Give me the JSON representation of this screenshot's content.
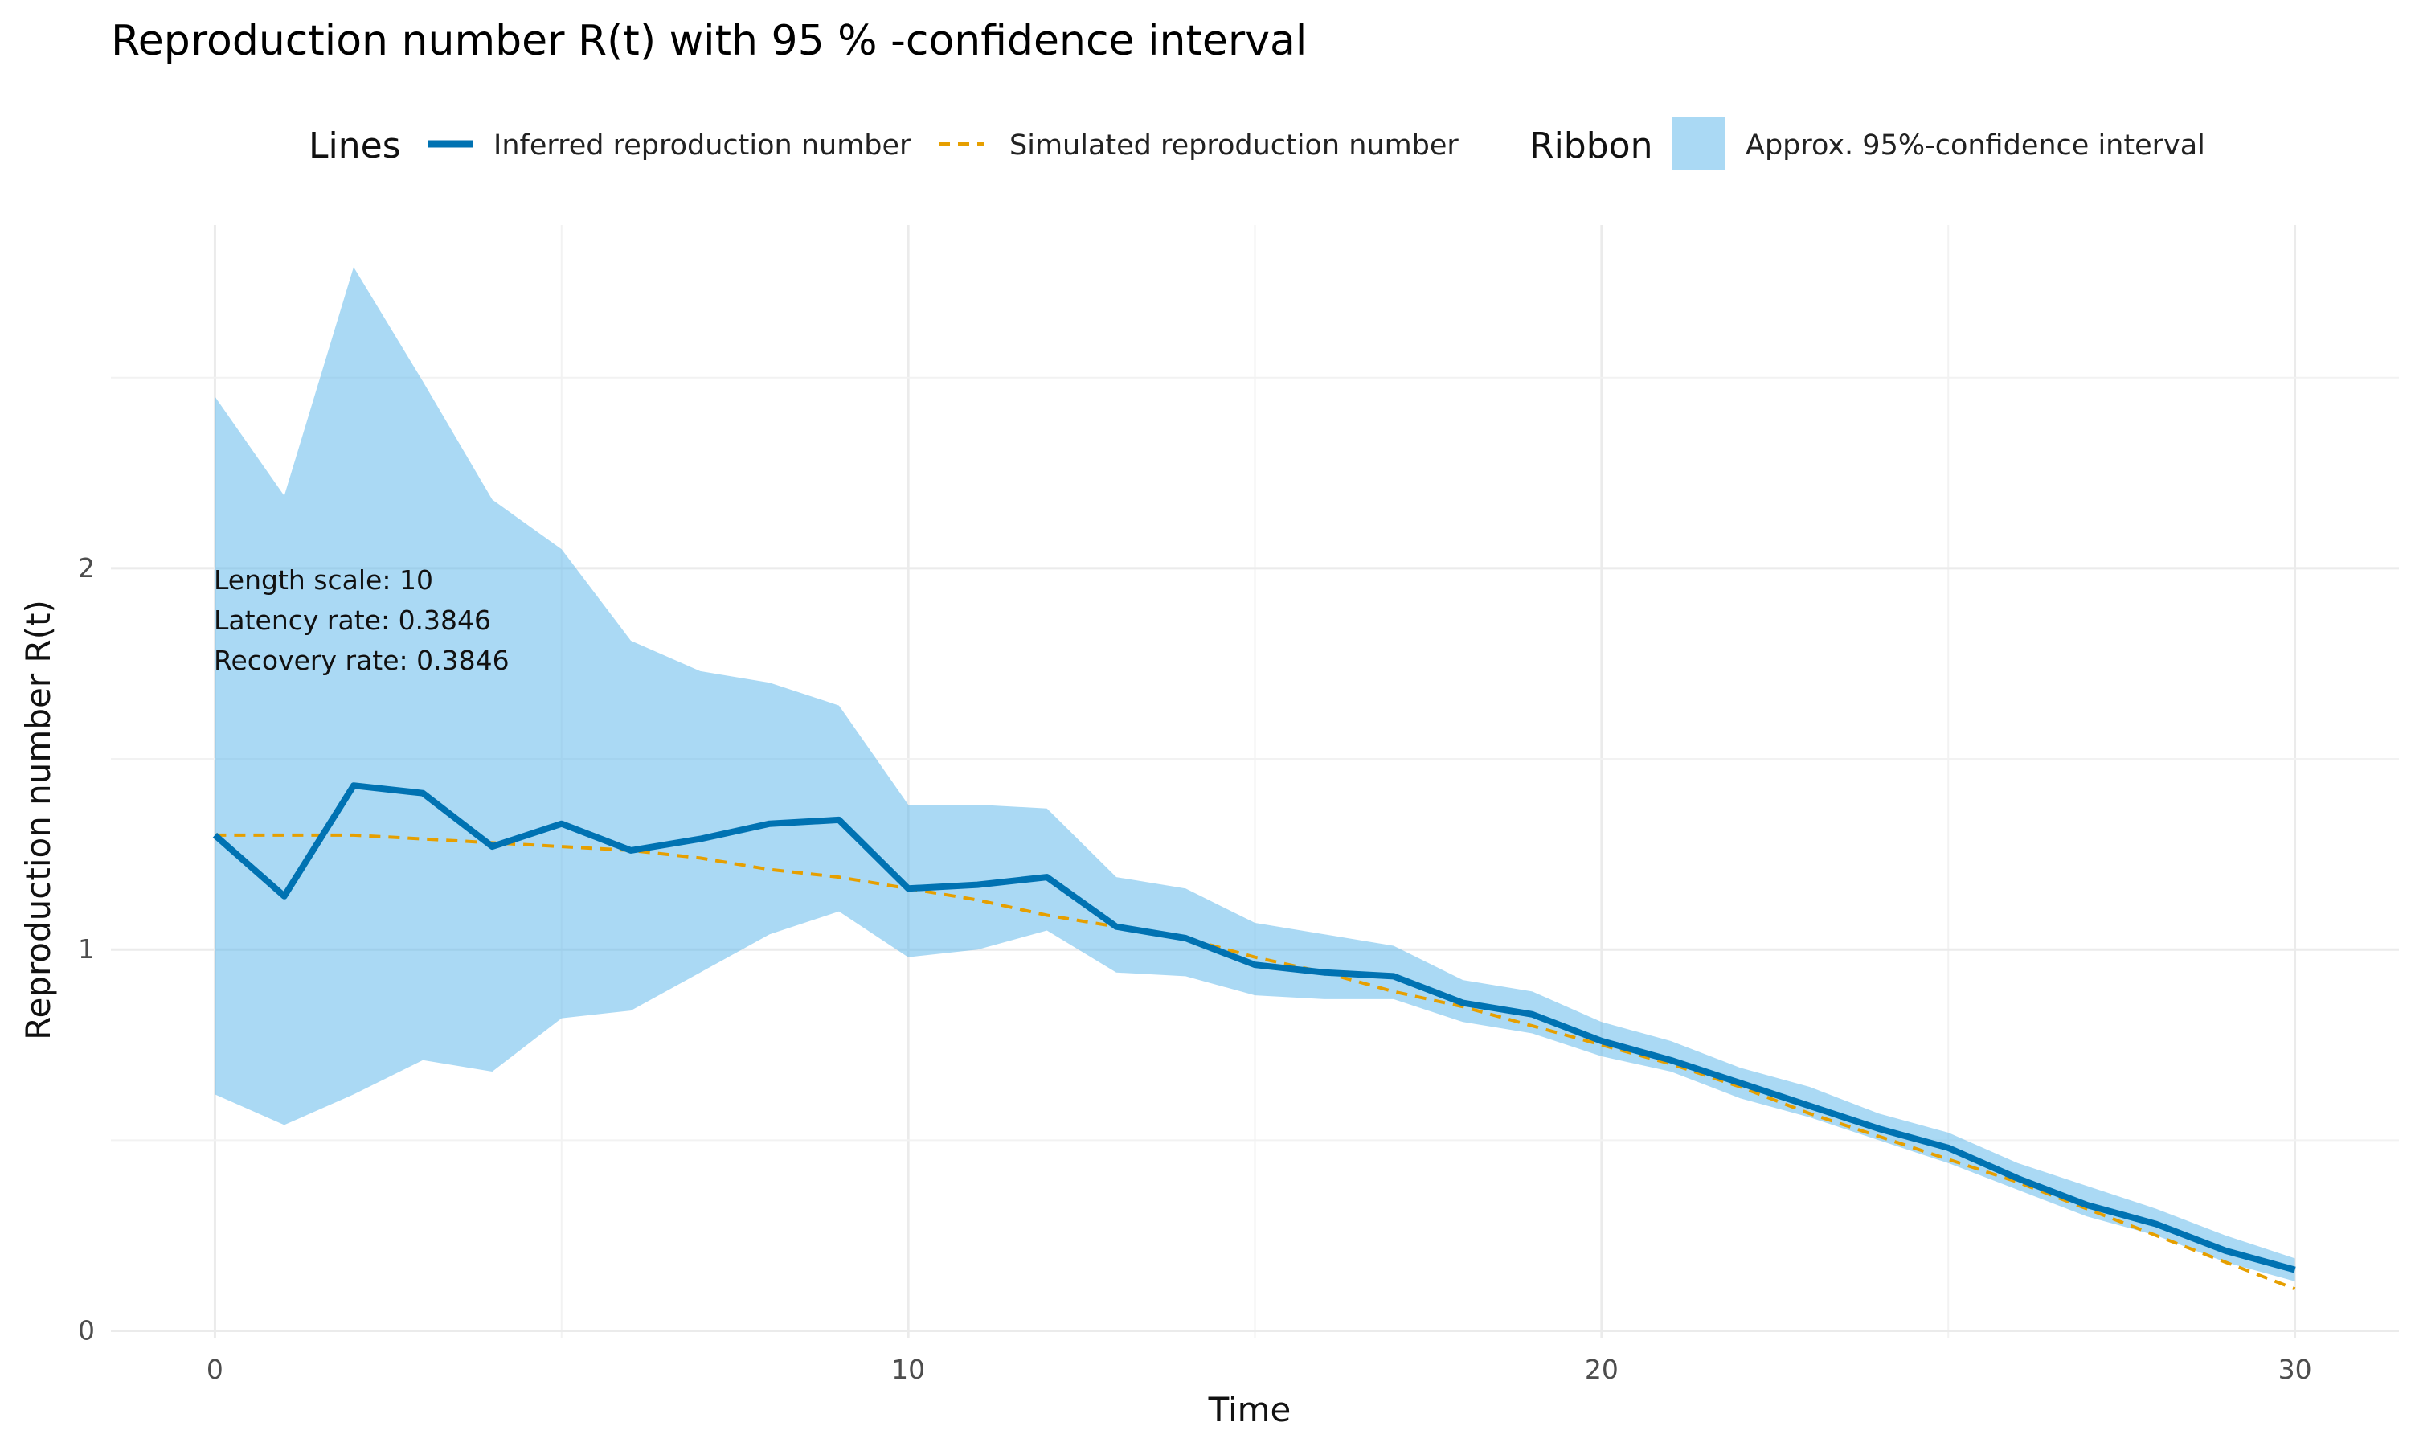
{
  "chart_data": {
    "type": "line",
    "title": "Reproduction number R(t) with 95 % -confidence interval",
    "xlabel": "Time",
    "ylabel": "Reproduction number R(t)",
    "xlim": [
      -1.5,
      31.5
    ],
    "ylim": [
      -0.02,
      2.9
    ],
    "x_ticks": [
      0,
      10,
      20,
      30
    ],
    "y_ticks": [
      0,
      1,
      2
    ],
    "grid": true,
    "legend_position": "top",
    "legend": {
      "lines_title": "Lines",
      "ribbon_title": "Ribbon",
      "inferred_label": "Inferred reproduction number",
      "simulated_label": "Simulated reproduction number",
      "ribbon_label": "Approx. 95%-confidence interval"
    },
    "annotation": {
      "length_scale": "Length scale: 10",
      "latency_rate": "Latency rate: 0.3846",
      "recovery_rate": "Recovery rate: 0.3846"
    },
    "colors": {
      "inferred": "#0072b2",
      "simulated": "#e69f00",
      "ribbon": "#56b4e9"
    },
    "x": [
      0,
      1,
      2,
      3,
      4,
      5,
      6,
      7,
      8,
      9,
      10,
      11,
      12,
      13,
      14,
      15,
      16,
      17,
      18,
      19,
      20,
      21,
      22,
      23,
      24,
      25,
      26,
      27,
      28,
      29,
      30
    ],
    "series": [
      {
        "name": "Inferred reproduction number",
        "values": [
          1.3,
          1.14,
          1.43,
          1.41,
          1.27,
          1.33,
          1.26,
          1.29,
          1.33,
          1.34,
          1.16,
          1.17,
          1.19,
          1.06,
          1.03,
          0.96,
          0.94,
          0.93,
          0.86,
          0.83,
          0.76,
          0.71,
          0.65,
          0.59,
          0.53,
          0.48,
          0.4,
          0.33,
          0.28,
          0.21,
          0.16
        ]
      },
      {
        "name": "Simulated reproduction number",
        "values": [
          1.3,
          1.3,
          1.3,
          1.29,
          1.28,
          1.27,
          1.26,
          1.24,
          1.21,
          1.19,
          1.16,
          1.13,
          1.09,
          1.06,
          1.03,
          0.98,
          0.94,
          0.89,
          0.85,
          0.8,
          0.75,
          0.7,
          0.64,
          0.57,
          0.51,
          0.45,
          0.39,
          0.32,
          0.25,
          0.18,
          0.11
        ]
      }
    ],
    "ribbon": {
      "name": "Approx. 95%-confidence interval",
      "lower": [
        0.62,
        0.54,
        0.62,
        0.71,
        0.68,
        0.82,
        0.84,
        0.94,
        1.04,
        1.1,
        0.98,
        1.0,
        1.05,
        0.94,
        0.93,
        0.88,
        0.87,
        0.87,
        0.81,
        0.78,
        0.72,
        0.68,
        0.61,
        0.56,
        0.5,
        0.44,
        0.37,
        0.3,
        0.25,
        0.18,
        0.13
      ],
      "upper": [
        2.45,
        2.19,
        2.79,
        2.49,
        2.18,
        2.05,
        1.81,
        1.73,
        1.7,
        1.64,
        1.38,
        1.38,
        1.37,
        1.19,
        1.16,
        1.07,
        1.04,
        1.01,
        0.92,
        0.89,
        0.81,
        0.76,
        0.69,
        0.64,
        0.57,
        0.52,
        0.44,
        0.38,
        0.32,
        0.25,
        0.19
      ]
    }
  }
}
